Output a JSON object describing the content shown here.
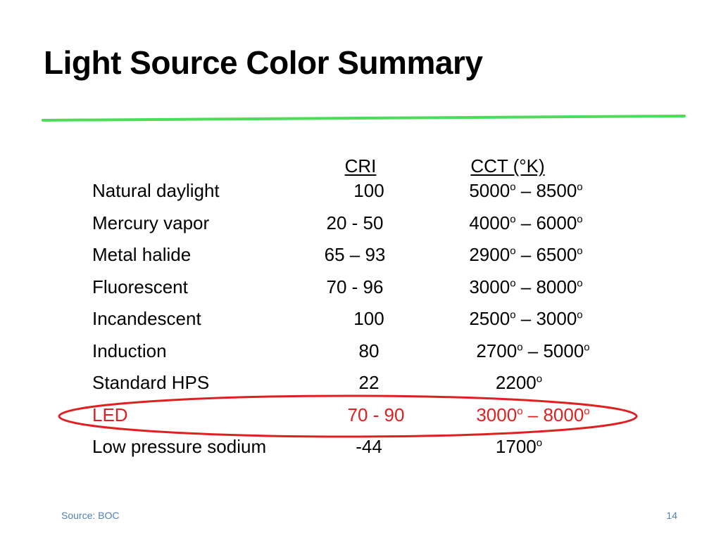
{
  "slide": {
    "title": "Light Source Color Summary",
    "accent_color": "#4cdc5a",
    "highlight_color": "#e02020",
    "link_color": "#4f81bd"
  },
  "table": {
    "headers": {
      "cri": "CRI",
      "cct": "CCT (°K)"
    },
    "rows": [
      {
        "name": "Natural daylight",
        "cri": "100",
        "cct_low": "5000",
        "cct_high": "8500",
        "highlighted": false
      },
      {
        "name": "Mercury vapor",
        "cri": "20 - 50",
        "cct_low": "4000",
        "cct_high": "6000",
        "highlighted": false
      },
      {
        "name": "Metal halide",
        "cri": "65 – 93",
        "cct_low": "2900",
        "cct_high": "6500",
        "highlighted": false
      },
      {
        "name": "Fluorescent",
        "cri": "70 - 96",
        "cct_low": "3000",
        "cct_high": "8000",
        "highlighted": false
      },
      {
        "name": "Incandescent",
        "cri": "100",
        "cct_low": "2500",
        "cct_high": "3000",
        "highlighted": false
      },
      {
        "name": "Induction",
        "cri": "80",
        "cct_low": "2700",
        "cct_high": "5000",
        "highlighted": false
      },
      {
        "name": "Standard HPS",
        "cri": "22",
        "cct_low": "2200",
        "cct_high": "",
        "highlighted": false
      },
      {
        "name": "LED",
        "cri": "70 - 90",
        "cct_low": "3000",
        "cct_high": "8000",
        "highlighted": true
      },
      {
        "name": "Low pressure sodium",
        "cri": "-44",
        "cct_low": "1700",
        "cct_high": "",
        "highlighted": false
      }
    ],
    "degree_mark": "o",
    "range_separator": " – "
  },
  "footer": {
    "source": "Source: BOC",
    "page_number": "14"
  }
}
